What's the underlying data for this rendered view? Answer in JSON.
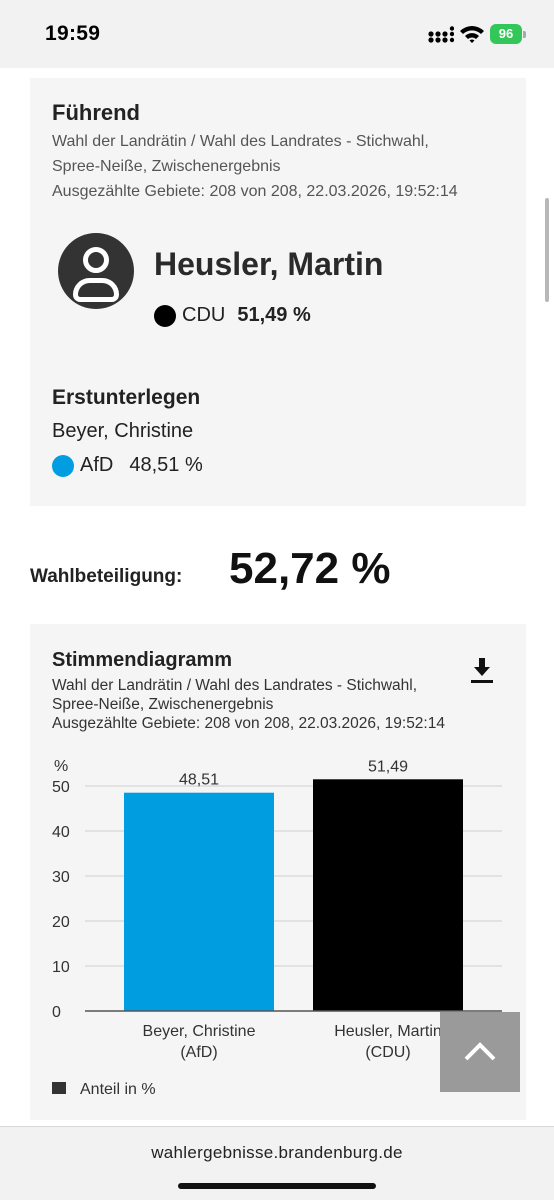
{
  "status": {
    "time": "19:59",
    "battery": "96"
  },
  "leading": {
    "heading": "Führend",
    "election": "Wahl der Landrätin / Wahl des Landrates - Stichwahl,",
    "area": "Spree-Neiße, Zwischenergebnis",
    "counted": "Ausgezählte Gebiete: 208 von 208, 22.03.2026, 19:52:14",
    "name": "Heusler, Martin",
    "party": "CDU",
    "percent": "51,49 %",
    "party_color": "#000000"
  },
  "second": {
    "heading": "Erstunterlegen",
    "name": "Beyer, Christine",
    "party": "AfD",
    "percent": "48,51 %",
    "party_color": "#009ee0"
  },
  "turnout": {
    "label": "Wahlbeteiligung:",
    "value": "52,72 %"
  },
  "chart_section": {
    "heading": "Stimmendiagramm",
    "election": "Wahl der Landrätin / Wahl des Landrates - Stichwahl,",
    "area": "Spree-Neiße, Zwischenergebnis",
    "counted": "Ausgezählte Gebiete: 208 von 208, 22.03.2026, 19:52:14"
  },
  "chart_data": {
    "type": "bar",
    "categories": [
      [
        "Beyer, Christine",
        "(AfD)"
      ],
      [
        "Heusler, Martin",
        "(CDU)"
      ]
    ],
    "values": [
      48.51,
      51.49
    ],
    "value_labels": [
      "48,51",
      "51,49"
    ],
    "colors": [
      "#009ee0",
      "#000000"
    ],
    "ylabel": "%",
    "ylim": [
      0,
      50
    ],
    "yticks": [
      0,
      10,
      20,
      30,
      40,
      50
    ],
    "legend": "Anteil in %",
    "legend_color": "#333333",
    "grid": true
  },
  "browser": {
    "url": "wahlergebnisse.brandenburg.de"
  }
}
